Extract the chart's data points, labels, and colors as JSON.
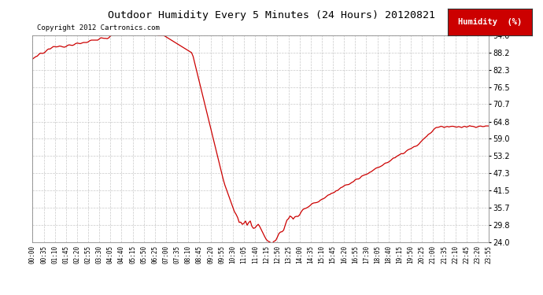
{
  "title": "Outdoor Humidity Every 5 Minutes (24 Hours) 20120821",
  "copyright_text": "Copyright 2012 Cartronics.com",
  "legend_label": "Humidity  (%)",
  "legend_bg": "#cc0000",
  "legend_text_color": "#ffffff",
  "line_color": "#cc0000",
  "bg_color": "#ffffff",
  "grid_color": "#bbbbbb",
  "yticks": [
    24.0,
    29.8,
    35.7,
    41.5,
    47.3,
    53.2,
    59.0,
    64.8,
    70.7,
    76.5,
    82.3,
    88.2,
    94.0
  ],
  "ylim": [
    24.0,
    94.0
  ],
  "xtick_labels": [
    "00:00",
    "00:35",
    "01:10",
    "01:45",
    "02:20",
    "02:55",
    "03:30",
    "04:05",
    "04:40",
    "05:15",
    "05:50",
    "06:25",
    "07:00",
    "07:35",
    "08:10",
    "08:45",
    "09:20",
    "09:55",
    "10:30",
    "11:05",
    "11:40",
    "12:15",
    "12:50",
    "13:25",
    "14:00",
    "14:35",
    "15:10",
    "15:45",
    "16:20",
    "16:55",
    "17:30",
    "18:05",
    "18:40",
    "19:15",
    "19:50",
    "20:25",
    "21:00",
    "21:35",
    "22:10",
    "22:45",
    "23:20",
    "23:55"
  ]
}
